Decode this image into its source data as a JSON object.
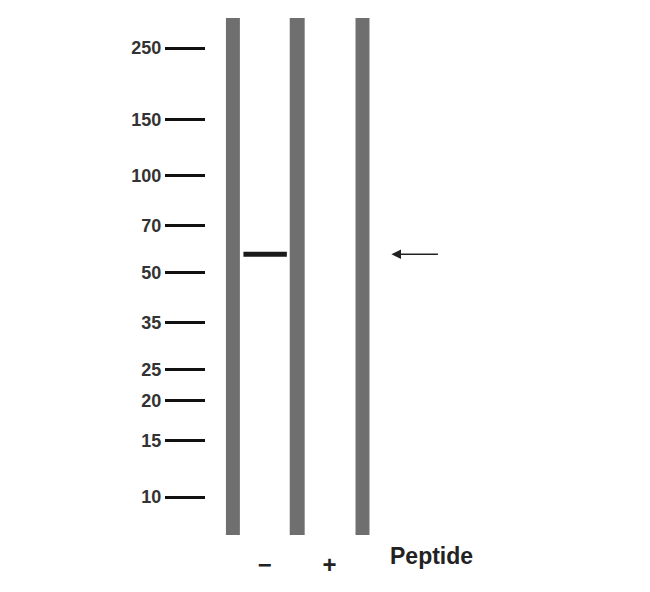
{
  "chart_data": {
    "type": "blot",
    "categories": [
      "−",
      "+"
    ],
    "values": [
      57,
      null
    ],
    "xlabel": "Peptide",
    "log": "y",
    "ylim": [
      10,
      250
    ],
    "yticks": [
      10,
      15,
      20,
      25,
      35,
      50,
      70,
      100,
      150,
      250
    ],
    "color": "#1a1a1a"
  }
}
